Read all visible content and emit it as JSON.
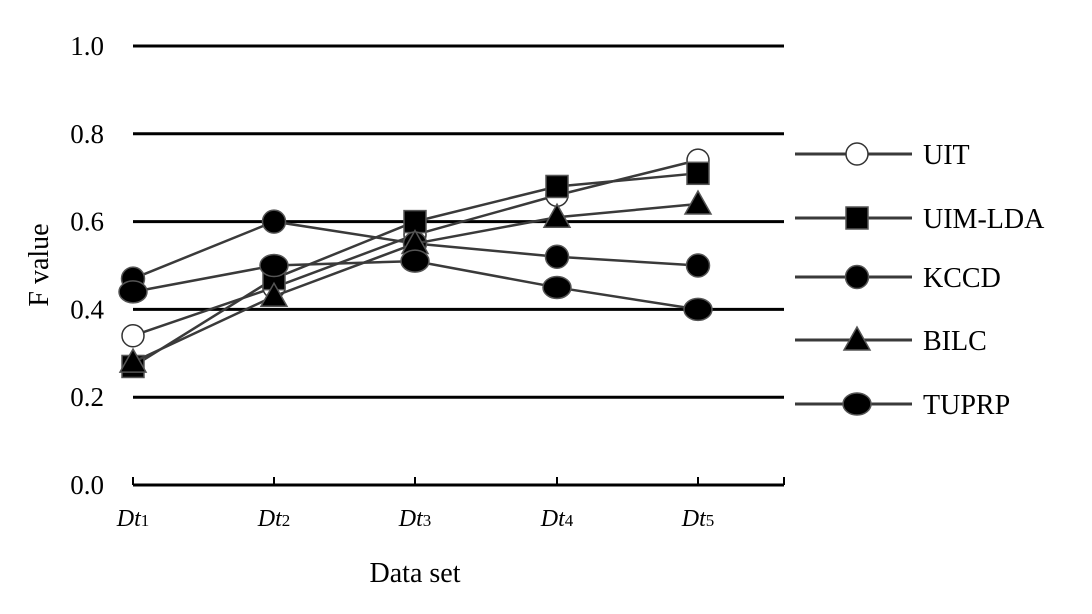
{
  "chart_data": {
    "type": "line",
    "title": "",
    "xlabel": "Data set",
    "ylabel": "F value",
    "categories": [
      {
        "base": "Dt",
        "sub": "1"
      },
      {
        "base": "Dt",
        "sub": "2"
      },
      {
        "base": "Dt",
        "sub": "3"
      },
      {
        "base": "Dt",
        "sub": "4"
      },
      {
        "base": "Dt",
        "sub": "5"
      }
    ],
    "ylim": [
      0.0,
      1.0
    ],
    "yticks": [
      "0.0",
      "0.2",
      "0.4",
      "0.6",
      "0.8",
      "1.0"
    ],
    "grid": "horizontal",
    "legend_position": "right",
    "series": [
      {
        "name": "UIT",
        "marker": "open-circle",
        "values": [
          0.34,
          0.45,
          0.57,
          0.66,
          0.74
        ]
      },
      {
        "name": "UIM-LDA",
        "marker": "square",
        "values": [
          0.27,
          0.47,
          0.6,
          0.68,
          0.71
        ]
      },
      {
        "name": "KCCD",
        "marker": "circle",
        "values": [
          0.47,
          0.6,
          0.55,
          0.52,
          0.5
        ]
      },
      {
        "name": "BILC",
        "marker": "triangle",
        "values": [
          0.28,
          0.43,
          0.55,
          0.61,
          0.64
        ]
      },
      {
        "name": "TUPRP",
        "marker": "ellipse",
        "values": [
          0.44,
          0.5,
          0.51,
          0.45,
          0.4
        ]
      }
    ],
    "colors": {
      "line": "#3a3a3a",
      "marker": "#000000",
      "grid": "#000000",
      "background": "#ffffff"
    }
  }
}
